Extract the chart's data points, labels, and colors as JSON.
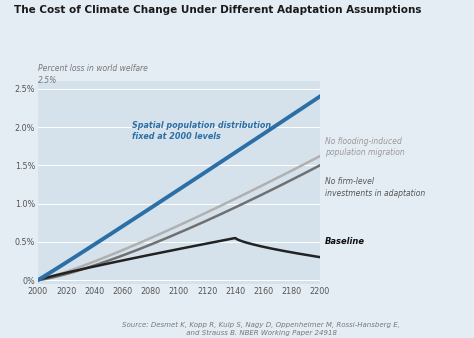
{
  "title": "The Cost of Climate Change Under Different Adaptation Assumptions",
  "ylabel": "Percent loss in world welfare",
  "background_color": "#e5edf4",
  "plot_bg_color": "#d5e2ec",
  "x_ticks": [
    2000,
    2020,
    2040,
    2060,
    2080,
    2100,
    2120,
    2140,
    2160,
    2180,
    2200
  ],
  "y_ticks": [
    0.0,
    0.005,
    0.01,
    0.015,
    0.02,
    0.025
  ],
  "y_tick_labels": [
    "0%",
    "0.5%",
    "1.0%",
    "1.5%",
    "2.0%",
    "2.5%"
  ],
  "source_text": "Source: Desmet K, Kopp R, Kulp S, Nagy D, Oppenheimer M, Rossi-Hansberg E,\n and Strauss B. NBER Working Paper 24918",
  "spatial_color": "#2c6fa6",
  "flooding_color": "#b0b0b0",
  "firm_color": "#707070",
  "baseline_color": "#222222",
  "spatial_lw": 2.8,
  "flooding_lw": 1.8,
  "firm_lw": 1.8,
  "baseline_lw": 1.8
}
